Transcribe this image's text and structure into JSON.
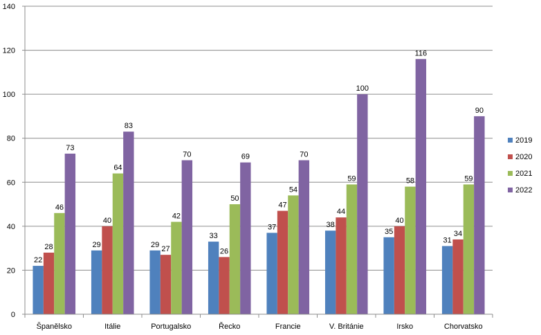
{
  "chart_data": {
    "type": "bar",
    "title": "",
    "xlabel": "",
    "ylabel": "",
    "ylim": [
      0,
      140
    ],
    "yticks": [
      0,
      20,
      40,
      60,
      80,
      100,
      120,
      140
    ],
    "grid": true,
    "legend_position": "right",
    "categories": [
      "Španělsko",
      "Itálie",
      "Portugalsko",
      "Řecko",
      "Francie",
      "V. Británie",
      "Irsko",
      "Chorvatsko"
    ],
    "series": [
      {
        "name": "2019",
        "color": "#4F81BD",
        "values": [
          22,
          29,
          29,
          33,
          37,
          38,
          35,
          31
        ]
      },
      {
        "name": "2020",
        "color": "#C0504D",
        "values": [
          28,
          40,
          27,
          26,
          47,
          44,
          40,
          34
        ]
      },
      {
        "name": "2021",
        "color": "#9BBB59",
        "values": [
          46,
          64,
          42,
          50,
          54,
          59,
          58,
          59
        ]
      },
      {
        "name": "2022",
        "color": "#8064A2",
        "values": [
          73,
          83,
          70,
          69,
          70,
          100,
          116,
          90
        ]
      }
    ]
  }
}
